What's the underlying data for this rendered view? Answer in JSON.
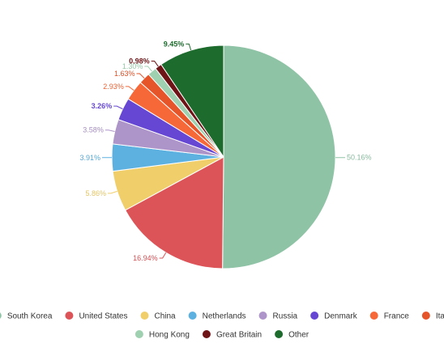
{
  "chart_data": {
    "type": "pie",
    "title": "",
    "slices": [
      {
        "label": "South Korea",
        "value": 50.16,
        "text": "50.16%",
        "color": "#8fc3a6"
      },
      {
        "label": "United States",
        "value": 16.94,
        "text": "16.94%",
        "color": "#dc5458"
      },
      {
        "label": "China",
        "value": 5.86,
        "text": "5.86%",
        "color": "#f0ce6a"
      },
      {
        "label": "Netherlands",
        "value": 3.91,
        "text": "3.91%",
        "color": "#5cb1e0"
      },
      {
        "label": "Russia",
        "value": 3.58,
        "text": "3.58%",
        "color": "#ad94c9"
      },
      {
        "label": "Denmark",
        "value": 3.26,
        "text": "3.26%",
        "color": "#6647d3"
      },
      {
        "label": "France",
        "value": 2.93,
        "text": "2.93%",
        "color": "#f76839"
      },
      {
        "label": "Italy",
        "value": 1.63,
        "text": "1.63%",
        "color": "#e6542a"
      },
      {
        "label": "Hong Kong",
        "value": 1.3,
        "text": "1.30%",
        "color": "#9fd1b1"
      },
      {
        "label": "Great Britain",
        "value": 0.98,
        "text": "0.98%",
        "color": "#6e1417"
      },
      {
        "label": "Other",
        "value": 9.45,
        "text": "9.45%",
        "color": "#1e6b2e"
      }
    ],
    "legend_position": "bottom"
  }
}
